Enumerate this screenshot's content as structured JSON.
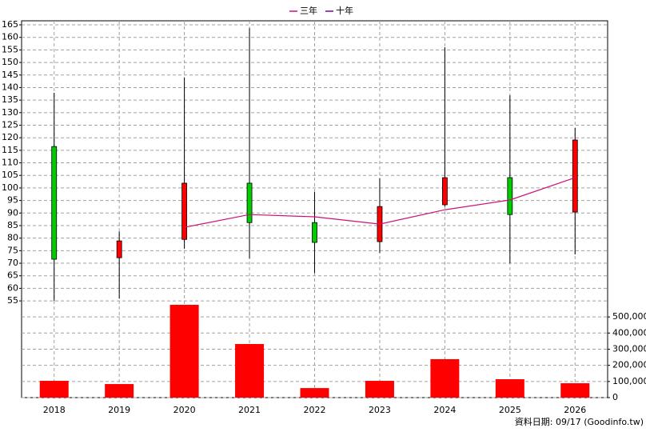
{
  "chart_data": {
    "type": "candlestick",
    "categories": [
      "2018",
      "2019",
      "2020",
      "2021",
      "2022",
      "2023",
      "2024",
      "2025",
      "2026"
    ],
    "open": [
      116.5,
      72.2,
      79.5,
      101.9,
      86.2,
      78.6,
      93.3,
      104.1,
      90.4
    ],
    "high": [
      137.9,
      82.7,
      143.9,
      163.7,
      98.4,
      103.8,
      156.1,
      136.9,
      123.9
    ],
    "low": [
      55,
      55.9,
      75.7,
      71.9,
      66.1,
      74.1,
      92.6,
      70,
      73.5
    ],
    "close": [
      71.6,
      78.9,
      101.9,
      86.2,
      78.3,
      92.6,
      104.1,
      89.4,
      119.1
    ],
    "up_color": "#ff0000",
    "down_color": "#00cc00",
    "series": [
      {
        "name": "三年",
        "color": "#cc1177",
        "values": [
          null,
          null,
          84.3,
          89.4,
          88.5,
          85.6,
          91.3,
          95.2,
          104.1
        ]
      },
      {
        "name": "十年",
        "color": "#8000a0",
        "values": [
          null,
          null,
          null,
          null,
          null,
          null,
          null,
          null,
          null
        ]
      }
    ],
    "volume": {
      "color": "#ff0000",
      "axis": "y2",
      "values": [
        104000,
        84000,
        575000,
        332000,
        59000,
        104000,
        238000,
        114000,
        89000
      ]
    },
    "ylim": [
      52.8,
      166.6
    ],
    "yticks": [
      55,
      60,
      65,
      70,
      75,
      80,
      85,
      90,
      95,
      100,
      105,
      110,
      115,
      120,
      125,
      130,
      135,
      140,
      145,
      150,
      155,
      160,
      165
    ],
    "y2lim": [
      0,
      580000
    ],
    "y2ticks": [
      0,
      {
        "value": 100000,
        "label": "100,000"
      },
      {
        "value": 200000,
        "label": "200,000"
      },
      {
        "value": 300000,
        "label": "300,000"
      },
      {
        "value": 400000,
        "label": "400,000"
      },
      {
        "value": 500000,
        "label": "500,000"
      }
    ],
    "grid": true,
    "footnote": "資料日期: 09/17  (Goodinfo.tw)"
  }
}
